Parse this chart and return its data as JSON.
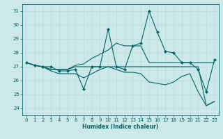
{
  "xlabel": "Humidex (Indice chaleur)",
  "bg_color": "#cce8e8",
  "grid_color": "#bbdddd",
  "line_color": "#006666",
  "xlim": [
    -0.5,
    23.5
  ],
  "ylim": [
    23.5,
    31.5
  ],
  "xticks": [
    0,
    1,
    2,
    3,
    4,
    5,
    6,
    7,
    8,
    9,
    10,
    11,
    12,
    13,
    14,
    15,
    16,
    17,
    18,
    19,
    20,
    21,
    22,
    23
  ],
  "yticks": [
    24,
    25,
    26,
    27,
    28,
    29,
    30,
    31
  ],
  "series": [
    {
      "y": [
        27.3,
        27.1,
        27.0,
        27.0,
        26.7,
        26.7,
        26.8,
        25.4,
        27.0,
        27.0,
        29.7,
        27.0,
        26.8,
        28.5,
        28.7,
        31.0,
        29.5,
        28.1,
        28.0,
        27.3,
        27.3,
        26.8,
        25.2,
        27.5
      ],
      "linestyle": "-",
      "marker": "D",
      "markersize": 2.0
    },
    {
      "y": [
        27.3,
        27.1,
        27.0,
        26.8,
        26.8,
        26.8,
        27.1,
        27.2,
        27.6,
        27.9,
        28.2,
        28.7,
        28.5,
        28.5,
        28.5,
        27.3,
        27.3,
        27.3,
        27.3,
        27.3,
        27.3,
        27.3,
        27.3,
        27.3
      ],
      "linestyle": "-",
      "marker": null,
      "markersize": 0
    },
    {
      "y": [
        27.3,
        27.1,
        27.0,
        26.7,
        26.5,
        26.5,
        26.5,
        26.2,
        26.5,
        26.8,
        27.0,
        26.8,
        26.6,
        26.6,
        26.5,
        25.9,
        25.8,
        25.7,
        25.9,
        26.3,
        26.5,
        25.2,
        24.2,
        24.5
      ],
      "linestyle": "-",
      "marker": null,
      "markersize": 0
    },
    {
      "y": [
        27.3,
        27.1,
        27.0,
        26.8,
        26.8,
        26.8,
        27.0,
        27.0,
        27.0,
        27.0,
        27.0,
        27.0,
        27.0,
        27.0,
        27.0,
        27.0,
        27.0,
        27.0,
        27.0,
        27.0,
        27.0,
        27.0,
        24.2,
        24.5
      ],
      "linestyle": "-",
      "marker": null,
      "markersize": 0
    }
  ]
}
